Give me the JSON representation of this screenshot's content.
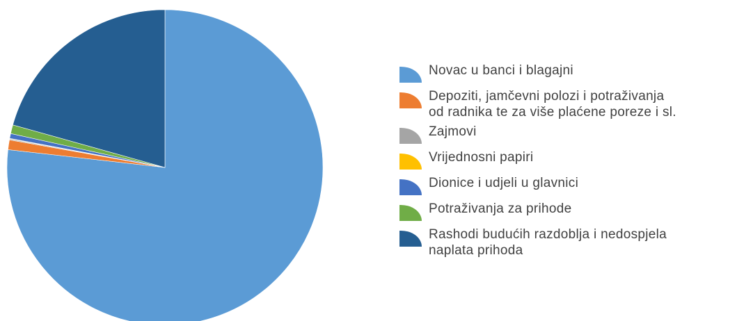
{
  "chart_data": {
    "type": "pie",
    "title": "",
    "start_angle_deg": 0,
    "direction": "clockwise",
    "legend_position": "right",
    "slices": [
      {
        "label": "Novac u banci i blagajni",
        "value": 76.8,
        "color": "#5B9BD5"
      },
      {
        "label": "Depoziti, jamčevni polozi i potraživanja\nod radnika te za više plaćene poreze i sl.",
        "value": 1.0,
        "color": "#ED7D31"
      },
      {
        "label": "Zajmovi",
        "value": 0.1,
        "color": "#A5A5A5"
      },
      {
        "label": "Vrijednosni papiri",
        "value": 0.05,
        "color": "#FFC000"
      },
      {
        "label": "Dionice i udjeli u glavnici",
        "value": 0.5,
        "color": "#4472C4"
      },
      {
        "label": "Potraživanja za prihode",
        "value": 0.9,
        "color": "#70AD47"
      },
      {
        "label": "Rashodi budućih razdoblja i nedospjela\nnaplata prihoda",
        "value": 20.65,
        "color": "#255E91"
      }
    ]
  }
}
